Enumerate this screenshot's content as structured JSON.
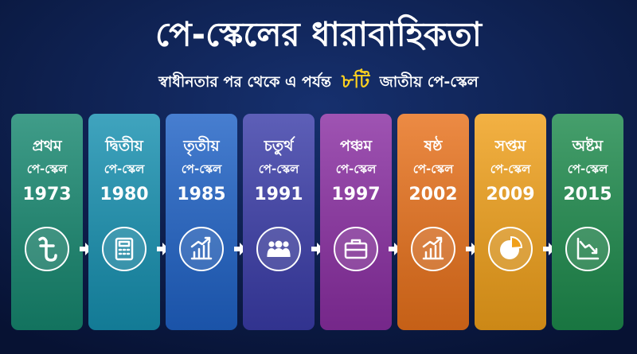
{
  "header": {
    "title": "পে-স্কেলের ধারাবাহিকতা",
    "subtitle": [
      "স্বাধীনতার পর থেকে এ পর্যন্ত",
      "৮টি",
      "জাতীয় পে-স্কেল"
    ]
  },
  "cards": [
    {
      "ordinal": "প্রথম",
      "label": "পে-স্কেল",
      "year": 1973
    },
    {
      "ordinal": "দ্বিতীয়",
      "label": "পে-স্কেল",
      "year": 1980
    },
    {
      "ordinal": "তৃতীয়",
      "label": "পে-স্কেল",
      "year": 1985
    },
    {
      "ordinal": "চতুর্থ",
      "label": "পে-স্কেল",
      "year": 1991
    },
    {
      "ordinal": "পঞ্চম",
      "label": "পে-স্কেল",
      "year": 1997
    },
    {
      "ordinal": "ষষ্ঠ",
      "label": "পে-স্কেল",
      "year": 2002
    },
    {
      "ordinal": "সপ্তম",
      "label": "পে-স্কেল",
      "year": 2009
    },
    {
      "ordinal": "অষ্টম",
      "label": "পে-স্কেল",
      "year": 2015
    }
  ]
}
